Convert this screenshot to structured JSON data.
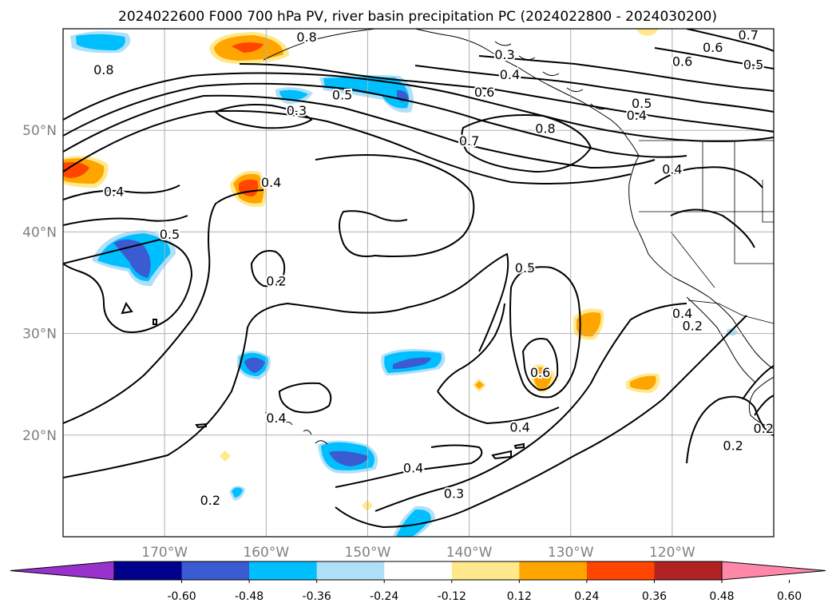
{
  "title": "2024022600 F000 700 hPa PV, river basin precipitation PC (2024022800 - 2024030200)",
  "map": {
    "lat_labels": [
      "50°N",
      "40°N",
      "30°N",
      "20°N"
    ],
    "lon_labels": [
      "170°W",
      "160°W",
      "150°W",
      "140°W",
      "130°W",
      "120°W"
    ],
    "extent": {
      "lon_min": -180,
      "lon_max": -110,
      "lat_min": 10,
      "lat_max": 60
    },
    "gridlines": true,
    "grid_color": "#b0b0b0",
    "coastline_color": "#000000"
  },
  "colorbar": {
    "ticks": [
      "-0.60",
      "-0.48",
      "-0.36",
      "-0.24",
      "-0.12",
      "0.12",
      "0.24",
      "0.36",
      "0.48",
      "0.60"
    ],
    "colors": [
      "#9932cc",
      "#00008b",
      "#3a5bd1",
      "#00bfff",
      "#b0e0f8",
      "#ffffff",
      "#ffe98c",
      "#ffa500",
      "#ff4500",
      "#b22222",
      "#ff88aa"
    ],
    "extend": "both"
  },
  "contour_labels": [
    {
      "text": "0.8",
      "lon": -176,
      "lat": 56
    },
    {
      "text": "0.3",
      "lon": -157,
      "lat": 52
    },
    {
      "text": "0.5",
      "lon": -152.5,
      "lat": 53.5
    },
    {
      "text": "0.8",
      "lon": -156,
      "lat": 59.2
    },
    {
      "text": "0.3",
      "lon": -136.5,
      "lat": 57.5
    },
    {
      "text": "0.4",
      "lon": -136,
      "lat": 55.5
    },
    {
      "text": "0.6",
      "lon": -138.5,
      "lat": 53.8
    },
    {
      "text": "0.7",
      "lon": -140,
      "lat": 49
    },
    {
      "text": "0.8",
      "lon": -132.5,
      "lat": 50.2
    },
    {
      "text": "0.5",
      "lon": -123,
      "lat": 52.7
    },
    {
      "text": "0.4",
      "lon": -123.5,
      "lat": 51.5
    },
    {
      "text": "0.6",
      "lon": -119,
      "lat": 56.8
    },
    {
      "text": "0.6",
      "lon": -116,
      "lat": 58.2
    },
    {
      "text": "0.5",
      "lon": -112,
      "lat": 56.5
    },
    {
      "text": "0.7",
      "lon": -112.5,
      "lat": 59.4
    },
    {
      "text": "0.4",
      "lon": -120,
      "lat": 46.2
    },
    {
      "text": "0.4",
      "lon": -175,
      "lat": 44
    },
    {
      "text": "0.4",
      "lon": -159.5,
      "lat": 44.9
    },
    {
      "text": "0.5",
      "lon": -169.5,
      "lat": 39.8
    },
    {
      "text": "0.2",
      "lon": -159,
      "lat": 35.2
    },
    {
      "text": "0.5",
      "lon": -134.5,
      "lat": 36.5
    },
    {
      "text": "0.6",
      "lon": -133,
      "lat": 26.2
    },
    {
      "text": "0.4",
      "lon": -159,
      "lat": 21.7
    },
    {
      "text": "0.4",
      "lon": -135,
      "lat": 20.8
    },
    {
      "text": "0.4",
      "lon": -145.5,
      "lat": 16.8
    },
    {
      "text": "0.3",
      "lon": -141.5,
      "lat": 14.3
    },
    {
      "text": "0.2",
      "lon": -165.5,
      "lat": 13.6
    },
    {
      "text": "0.4",
      "lon": -119,
      "lat": 32
    },
    {
      "text": "0.2",
      "lon": -118,
      "lat": 30.8
    },
    {
      "text": "0.2",
      "lon": -111,
      "lat": 20.7
    },
    {
      "text": "0.2",
      "lon": -114,
      "lat": 19
    }
  ]
}
